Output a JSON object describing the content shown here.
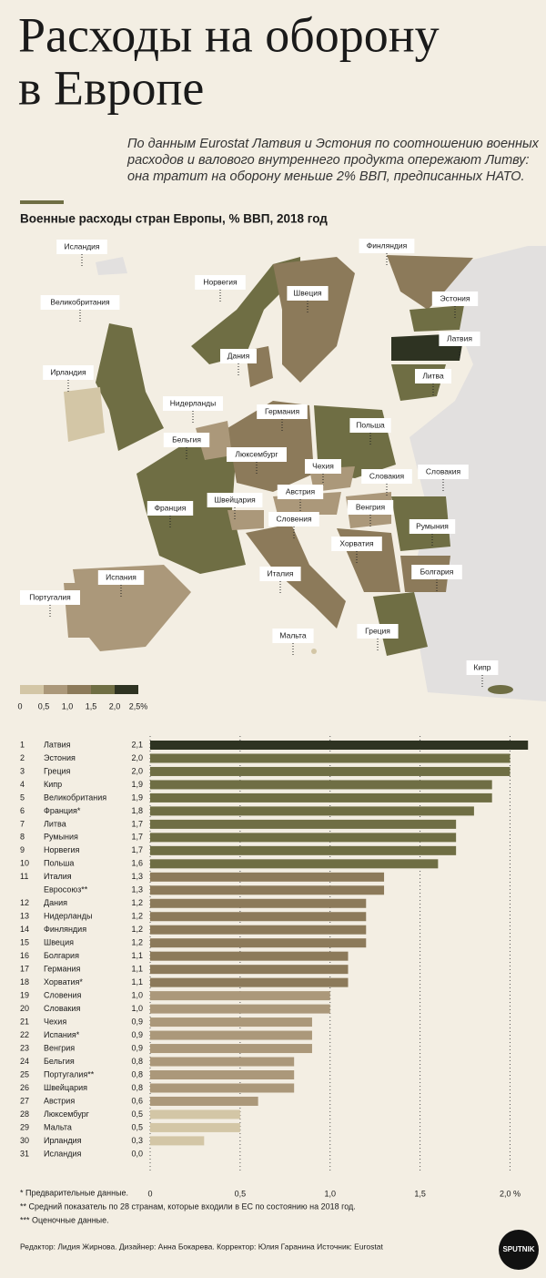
{
  "title_lines": [
    "Расходы на оборону",
    "в Европе"
  ],
  "subtitle_lines": [
    "По данным Eurostat Латвия и Эстония по соотношению военных",
    "расходов и валового внутреннего продукта опережают Литву:",
    "она тратит на оборону меньше 2% ВВП, предписанных НАТО."
  ],
  "map": {
    "labels": [
      "Исландия",
      "Финляндия",
      "Норвегия",
      "Швеция",
      "Эстония",
      "Великобритания",
      "Латвия",
      "Дания",
      "Ирландия",
      "Литва",
      "Нидерланды",
      "Германия",
      "Польша",
      "Бельгия",
      "Люксембург",
      "Чехия",
      "Словакия",
      "Словакия",
      "Австрия",
      "Швейцария",
      "Венгрия",
      "Франция",
      "Словения",
      "Румыния",
      "Хорватия",
      "Италия",
      "Болгария",
      "Испания",
      "Португалия",
      "Мальта",
      "Греция",
      "Кипр"
    ],
    "legend": {
      "ticks": [
        0,
        {
          "value": 0.5,
          "label": "0,5"
        },
        {
          "value": 1.0,
          "label": "1,0"
        },
        {
          "value": 1.5,
          "label": "1,5"
        },
        {
          "value": 2.0,
          "label": "2,0"
        },
        {
          "value": 2.5,
          "label": "2,5%"
        }
      ],
      "colors": [
        "#d3c6a6",
        "#ab987a",
        "#8c7a5a",
        "#6f6e44",
        "#2e3322"
      ]
    }
  },
  "chart_data": {
    "type": "hbar",
    "title": "Военные расходы стран Европы, % ВВП, 2018 год",
    "ranks": [
      "1",
      "2",
      "3",
      "4",
      "5",
      "6",
      "7",
      "8",
      "9",
      "10",
      "11",
      null,
      "12",
      "13",
      "14",
      "15",
      "16",
      "17",
      "18",
      "19",
      "20",
      "21",
      "22",
      "23",
      "24",
      "25",
      "26",
      "27",
      "28",
      "29",
      "30",
      "31"
    ],
    "categories": [
      "Латвия",
      "Эстония",
      "Греция",
      "Кипр",
      "Великобритания",
      "Франция*",
      "Литва",
      "Румыния",
      "Норвегия",
      "Польша",
      "Италия",
      "Евросоюз**",
      "Дания",
      "Нидерланды",
      "Финляндия",
      "Швеция",
      "Болгария",
      "Германия",
      "Хорватия*",
      "Словения",
      "Словакия",
      "Чехия",
      "Испания*",
      "Венгрия",
      "Бельгия",
      "Португалия**",
      "Швейцария",
      "Австрия",
      "Люксембург",
      "Мальта",
      "Ирландия",
      "Исландия"
    ],
    "values": [
      2.1,
      2.0,
      2.0,
      1.9,
      1.9,
      1.8,
      1.7,
      1.7,
      1.7,
      1.6,
      1.3,
      1.3,
      1.2,
      1.2,
      1.2,
      1.2,
      1.1,
      1.1,
      1.1,
      1.0,
      1.0,
      0.9,
      0.9,
      0.9,
      0.8,
      0.8,
      0.8,
      0.6,
      0.5,
      0.5,
      0.3,
      0.0
    ],
    "value_labels": [
      "2,1",
      "2,0",
      "2,0",
      "1,9",
      "1,9",
      "1,8",
      "1,7",
      "1,7",
      "1,7",
      "1,6",
      "1,3",
      "1,3",
      "1,2",
      "1,2",
      "1,2",
      "1,2",
      "1,1",
      "1,1",
      "1,1",
      "1,0",
      "1,0",
      "0,9",
      "0,9",
      "0,9",
      "0,8",
      "0,8",
      "0,8",
      "0,6",
      "0,5",
      "0,5",
      "0,3",
      "0,0"
    ],
    "xlim": [
      0,
      2.2
    ],
    "xticks": [
      0,
      {
        "value": 0.5,
        "label": "0,5"
      },
      {
        "value": 1.0,
        "label": "1,0"
      },
      {
        "value": 1.5,
        "label": "1,5"
      },
      {
        "value": 2.0,
        "label": "2,0 %"
      }
    ],
    "grid": true
  },
  "footnotes": [
    "* Предварительные данные.",
    "** Средний показатель по 28 странам, которые входили в ЕС по состоянию на 2018 год.",
    "*** Оценочные данные."
  ],
  "credits": "Редактор: Лидия Жирнова. Дизайнер: Анна Бокарева. Корректор: Юлия Гаранина Источник: Eurostat",
  "logo": "SPUTNIK"
}
